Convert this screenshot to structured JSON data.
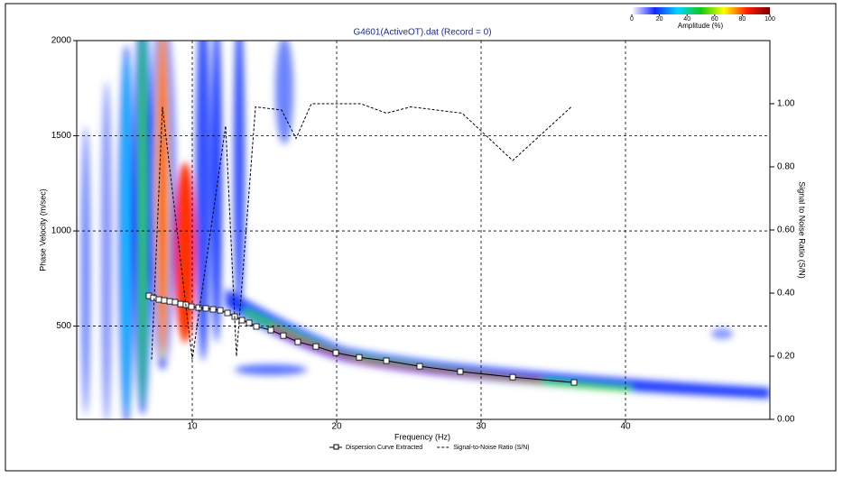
{
  "chart_data": {
    "type": "line",
    "title": "G4601(ActiveOT).dat (Record = 0)",
    "x_label": "Frequency (Hz)",
    "y_label": "Phase Velocity (m/sec)",
    "y2_label": "Signal to Noise Ratio (S/N)",
    "xlim": [
      2,
      50
    ],
    "xticks": [
      10,
      20,
      30,
      40
    ],
    "ylim": [
      10,
      2000
    ],
    "yticks": [
      500,
      1000,
      1500,
      2000
    ],
    "y2lim": [
      0,
      1.2
    ],
    "y2ticks": [
      {
        "value": 0,
        "label": "0.00"
      },
      {
        "value": 0.2,
        "label": "0.20"
      },
      {
        "value": 0.4,
        "label": "0.40"
      },
      {
        "value": 0.6,
        "label": "0.60"
      },
      {
        "value": 0.8,
        "label": "0.80"
      },
      {
        "value": 1,
        "label": "1.00"
      }
    ],
    "grid": true,
    "series": [
      {
        "name": "Dispersion Curve Extracted",
        "color": "#000000",
        "marker": "square",
        "x": [
          7.0,
          7.31,
          7.69,
          8.06,
          8.44,
          8.81,
          9.19,
          9.56,
          9.94,
          10.44,
          10.94,
          11.44,
          11.94,
          12.44,
          12.94,
          13.44,
          13.94,
          14.44,
          15.44,
          16.31,
          17.31,
          18.56,
          19.94,
          21.56,
          23.44,
          25.75,
          28.56,
          32.19,
          36.44
        ],
        "values": [
          659,
          649,
          640,
          635,
          630,
          626,
          616,
          612,
          602,
          597,
          593,
          588,
          583,
          569,
          550,
          531,
          517,
          498,
          479,
          450,
          417,
          393,
          360,
          336,
          318,
          289,
          261,
          232,
          204
        ]
      },
      {
        "name": "Signal-to-Noise Ratio (S/N)",
        "color": "#000000",
        "axis": "y2",
        "line_style": "dashed",
        "x": [
          7.19,
          7.94,
          10.0,
          12.31,
          13.06,
          14.38,
          16.19,
          17.19,
          18.25,
          20.0,
          21.69,
          23.44,
          25.13,
          28.69,
          32.19,
          36.25
        ],
        "values": [
          0.19,
          0.99,
          0.19,
          0.93,
          0.2,
          0.99,
          0.98,
          0.89,
          1.0,
          1.0,
          1.0,
          0.97,
          0.99,
          0.97,
          0.82,
          0.99
        ]
      }
    ],
    "colorbar": {
      "label": "Amplitude (%)",
      "ticks": [
        0,
        20,
        40,
        60,
        80,
        100
      ],
      "colors": [
        "#ffffff",
        "#1428ff",
        "#00d8ff",
        "#14c814",
        "#ffff00",
        "#ff1e00",
        "#780000"
      ]
    }
  }
}
